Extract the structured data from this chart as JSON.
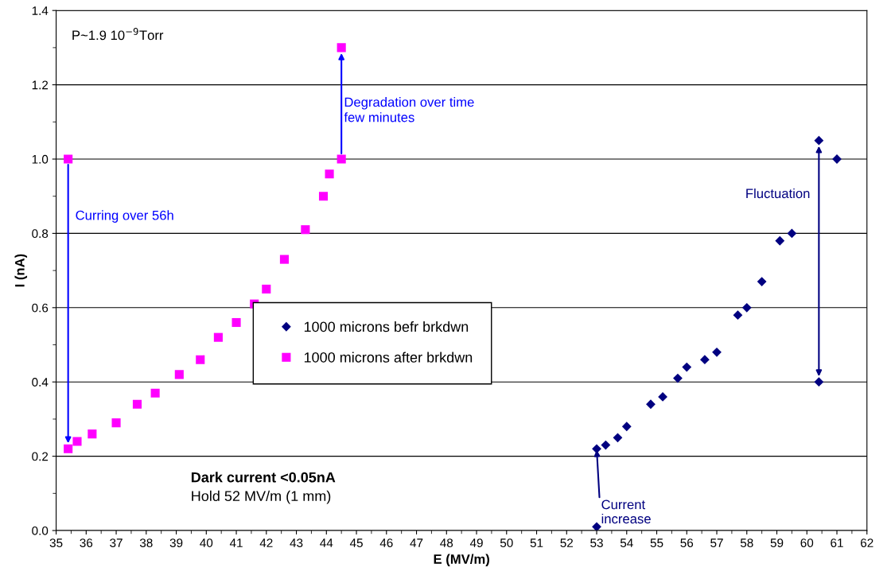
{
  "chart_data": {
    "type": "scatter",
    "xlabel": "E (MV/m)",
    "ylabel": "I (nA)",
    "xlim": [
      35,
      62
    ],
    "xticks": [
      35,
      36,
      37,
      38,
      39,
      40,
      41,
      42,
      43,
      44,
      45,
      46,
      47,
      48,
      49,
      50,
      51,
      52,
      53,
      54,
      55,
      56,
      57,
      58,
      59,
      60,
      61,
      62
    ],
    "ylim": [
      0,
      1.4
    ],
    "yticks": [
      {
        "value": 0,
        "label": "0.0"
      },
      {
        "value": 0.2,
        "label": "0.2"
      },
      {
        "value": 0.4,
        "label": "0.4"
      },
      {
        "value": 0.6,
        "label": "0.6"
      },
      {
        "value": 0.8,
        "label": "0.8"
      },
      {
        "value": 1.0,
        "label": "1.0"
      },
      {
        "value": 1.2,
        "label": "1.2"
      },
      {
        "value": 1.4,
        "label": "1.4"
      }
    ],
    "grid": "y",
    "legend": "center",
    "series": [
      {
        "name": "1000 microns befr brkdwn",
        "color": "#000080",
        "marker": "diamond",
        "x": [
          53,
          53,
          53.3,
          53.7,
          54,
          54.8,
          55.2,
          55.7,
          56,
          56.6,
          57,
          57.7,
          58,
          58.5,
          59.1,
          59.5,
          60.4,
          61,
          60.4
        ],
        "values": [
          0.01,
          0.22,
          0.23,
          0.25,
          0.28,
          0.34,
          0.36,
          0.41,
          0.44,
          0.46,
          0.48,
          0.58,
          0.6,
          0.67,
          0.78,
          0.8,
          1.05,
          1.0,
          0.4
        ]
      },
      {
        "name": "1000 microns after brkdwn",
        "color": "#ff00ff",
        "marker": "square",
        "x": [
          35.4,
          35.4,
          35.7,
          36.2,
          37,
          37.7,
          38.3,
          39.1,
          39.8,
          40.4,
          41,
          41.6,
          42,
          42.6,
          43.3,
          43.9,
          44.1,
          44.5,
          44.5
        ],
        "values": [
          1.0,
          0.22,
          0.24,
          0.26,
          0.29,
          0.34,
          0.37,
          0.42,
          0.46,
          0.52,
          0.56,
          0.61,
          0.65,
          0.73,
          0.81,
          0.9,
          0.96,
          1.0,
          1.3
        ]
      }
    ],
    "annotations": [
      "P~1.9 10$^{−9}$Torr",
      "Degradation over time\nfew minutes",
      "Curring over 56h",
      "Fluctuation",
      {
        "text": "Current increase",
        "x": 53,
        "y": 0.22
      },
      "Dark current <0.05nA",
      "Hold 52 MV/m (1 mm)"
    ]
  }
}
